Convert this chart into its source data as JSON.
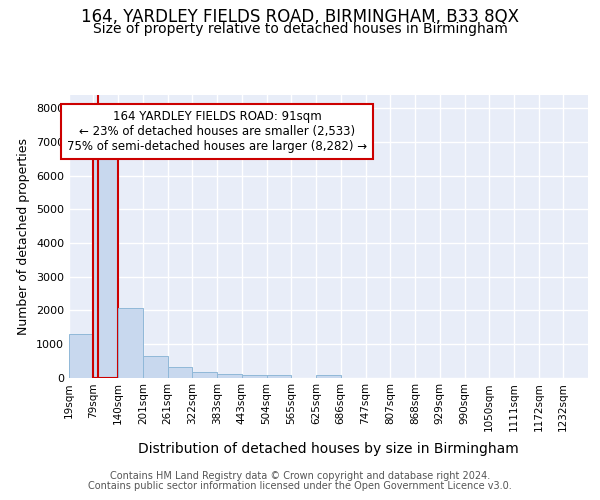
{
  "title": "164, YARDLEY FIELDS ROAD, BIRMINGHAM, B33 8QX",
  "subtitle": "Size of property relative to detached houses in Birmingham",
  "xlabel": "Distribution of detached houses by size in Birmingham",
  "ylabel": "Number of detached properties",
  "bar_color": "#c8d8ee",
  "bar_edge_color": "#90b8d8",
  "highlight_bar_edge_color": "#cc0000",
  "vline_color": "#cc0000",
  "background_color": "#e8edf8",
  "grid_color": "#ffffff",
  "categories": [
    "19sqm",
    "79sqm",
    "140sqm",
    "201sqm",
    "261sqm",
    "322sqm",
    "383sqm",
    "443sqm",
    "504sqm",
    "565sqm",
    "625sqm",
    "686sqm",
    "747sqm",
    "807sqm",
    "868sqm",
    "929sqm",
    "990sqm",
    "1050sqm",
    "1111sqm",
    "1172sqm",
    "1232sqm"
  ],
  "values": [
    1300,
    6600,
    2080,
    650,
    310,
    160,
    110,
    80,
    80,
    0,
    80,
    0,
    0,
    0,
    0,
    0,
    0,
    0,
    0,
    0,
    0
  ],
  "highlight_idx": 1,
  "vline_x": 91,
  "bin_edges": [
    19,
    79,
    140,
    201,
    261,
    322,
    383,
    443,
    504,
    565,
    625,
    686,
    747,
    807,
    868,
    929,
    990,
    1050,
    1111,
    1172,
    1232,
    1293
  ],
  "ylim": [
    0,
    8400
  ],
  "yticks": [
    0,
    1000,
    2000,
    3000,
    4000,
    5000,
    6000,
    7000,
    8000
  ],
  "annotation_text": "164 YARDLEY FIELDS ROAD: 91sqm\n← 23% of detached houses are smaller (2,533)\n75% of semi-detached houses are larger (8,282) →",
  "annotation_box_color": "#ffffff",
  "annotation_box_edge_color": "#cc0000",
  "footer_line1": "Contains HM Land Registry data © Crown copyright and database right 2024.",
  "footer_line2": "Contains public sector information licensed under the Open Government Licence v3.0.",
  "title_fontsize": 12,
  "subtitle_fontsize": 10,
  "ylabel_fontsize": 9,
  "xlabel_fontsize": 10,
  "tick_fontsize": 7.5,
  "annotation_fontsize": 8.5,
  "footer_fontsize": 7
}
